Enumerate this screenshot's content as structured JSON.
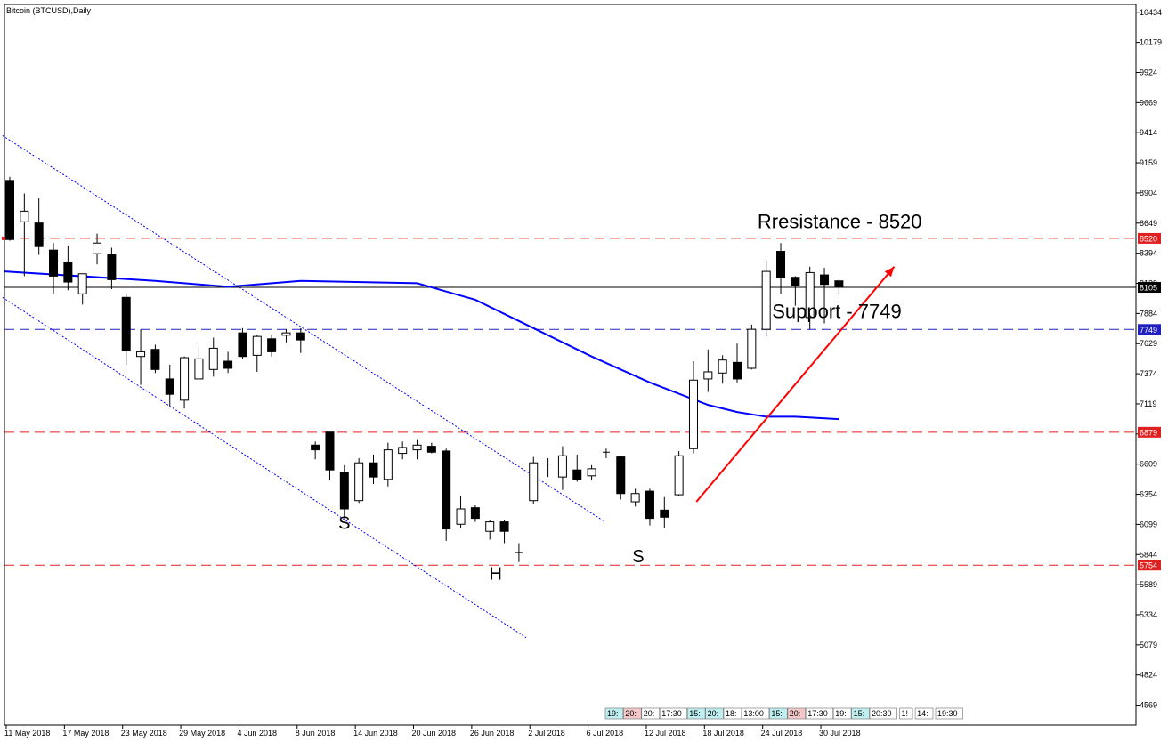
{
  "title": "Bitcoin (BTCUSD),Daily",
  "colors": {
    "bull_fill": "#ffffff",
    "bear_fill": "#000000",
    "candle_outline": "#000000",
    "ma_line": "#0000ff",
    "channel_line": "#0000ff",
    "red_level": "#e02020",
    "blue_level": "#2020c0",
    "arrow": "#ff0000",
    "current_price_line": "#000000"
  },
  "session_tabs": [
    "19:",
    "20:",
    "20:",
    "17:30",
    "15:",
    "20:",
    "18:",
    "13:00",
    "15:",
    "20:",
    "17:30",
    "19:",
    "15:",
    "20:30",
    "1!",
    "14:",
    "19:30"
  ],
  "chart_data": {
    "type": "candlestick",
    "title": "Bitcoin (BTCUSD),Daily",
    "ylim": [
      4400,
      10500
    ],
    "y_ticks": [
      10434,
      10179,
      9924,
      9669,
      9414,
      9159,
      8904,
      8649,
      8394,
      8139,
      7884,
      7629,
      7374,
      7119,
      6864,
      6609,
      6354,
      6099,
      5844,
      5589,
      5334,
      5079,
      4824,
      4569
    ],
    "x_tick_labels": [
      "11 May 2018",
      "17 May 2018",
      "23 May 2018",
      "29 May 2018",
      "4 Jun 2018",
      "8 Jun 2018",
      "14 Jun 2018",
      "20 Jun 2018",
      "26 Jun 2018",
      "2 Jul 2018",
      "6 Jul 2018",
      "12 Jul 2018",
      "18 Jul 2018",
      "24 Jul 2018",
      "30 Jul 2018"
    ],
    "candles": [
      {
        "o": 9010,
        "h": 9040,
        "l": 8500,
        "c": 8510
      },
      {
        "o": 8660,
        "h": 8900,
        "l": 8200,
        "c": 8750
      },
      {
        "o": 8650,
        "h": 8860,
        "l": 8380,
        "c": 8450
      },
      {
        "o": 8420,
        "h": 8480,
        "l": 8050,
        "c": 8200
      },
      {
        "o": 8320,
        "h": 8460,
        "l": 8080,
        "c": 8150
      },
      {
        "o": 8050,
        "h": 8220,
        "l": 7960,
        "c": 8220
      },
      {
        "o": 8390,
        "h": 8560,
        "l": 8300,
        "c": 8480
      },
      {
        "o": 8380,
        "h": 8440,
        "l": 8090,
        "c": 8170
      },
      {
        "o": 8020,
        "h": 8050,
        "l": 7450,
        "c": 7570
      },
      {
        "o": 7520,
        "h": 7750,
        "l": 7280,
        "c": 7560
      },
      {
        "o": 7580,
        "h": 7620,
        "l": 7380,
        "c": 7410
      },
      {
        "o": 7330,
        "h": 7450,
        "l": 7100,
        "c": 7200
      },
      {
        "o": 7150,
        "h": 7520,
        "l": 7080,
        "c": 7510
      },
      {
        "o": 7330,
        "h": 7600,
        "l": 7330,
        "c": 7500
      },
      {
        "o": 7410,
        "h": 7680,
        "l": 7350,
        "c": 7590
      },
      {
        "o": 7480,
        "h": 7560,
        "l": 7380,
        "c": 7420
      },
      {
        "o": 7720,
        "h": 7760,
        "l": 7500,
        "c": 7520
      },
      {
        "o": 7530,
        "h": 7700,
        "l": 7390,
        "c": 7690
      },
      {
        "o": 7670,
        "h": 7700,
        "l": 7520,
        "c": 7560
      },
      {
        "o": 7700,
        "h": 7750,
        "l": 7640,
        "c": 7720
      },
      {
        "o": 7720,
        "h": 7760,
        "l": 7550,
        "c": 7660
      },
      {
        "o": 6770,
        "h": 6800,
        "l": 6650,
        "c": 6730
      },
      {
        "o": 6880,
        "h": 6880,
        "l": 6470,
        "c": 6560
      },
      {
        "o": 6540,
        "h": 6600,
        "l": 6150,
        "c": 6230
      },
      {
        "o": 6300,
        "h": 6660,
        "l": 6280,
        "c": 6620
      },
      {
        "o": 6620,
        "h": 6690,
        "l": 6440,
        "c": 6500
      },
      {
        "o": 6480,
        "h": 6790,
        "l": 6420,
        "c": 6730
      },
      {
        "o": 6700,
        "h": 6800,
        "l": 6650,
        "c": 6750
      },
      {
        "o": 6730,
        "h": 6820,
        "l": 6650,
        "c": 6770
      },
      {
        "o": 6760,
        "h": 6790,
        "l": 6700,
        "c": 6710
      },
      {
        "o": 6720,
        "h": 6740,
        "l": 5960,
        "c": 6060
      },
      {
        "o": 6100,
        "h": 6340,
        "l": 6070,
        "c": 6230
      },
      {
        "o": 6240,
        "h": 6260,
        "l": 6120,
        "c": 6150
      },
      {
        "o": 6040,
        "h": 6140,
        "l": 5970,
        "c": 6120
      },
      {
        "o": 6120,
        "h": 6140,
        "l": 5940,
        "c": 6040
      },
      {
        "o": 5850,
        "h": 5940,
        "l": 5780,
        "c": 5860
      },
      {
        "o": 6300,
        "h": 6670,
        "l": 6270,
        "c": 6620
      },
      {
        "o": 6600,
        "h": 6660,
        "l": 6500,
        "c": 6610
      },
      {
        "o": 6500,
        "h": 6760,
        "l": 6390,
        "c": 6680
      },
      {
        "o": 6560,
        "h": 6690,
        "l": 6460,
        "c": 6480
      },
      {
        "o": 6510,
        "h": 6600,
        "l": 6470,
        "c": 6570
      },
      {
        "o": 6710,
        "h": 6740,
        "l": 6660,
        "c": 6710
      },
      {
        "o": 6670,
        "h": 6680,
        "l": 6310,
        "c": 6360
      },
      {
        "o": 6290,
        "h": 6400,
        "l": 6250,
        "c": 6360
      },
      {
        "o": 6380,
        "h": 6400,
        "l": 6090,
        "c": 6150
      },
      {
        "o": 6220,
        "h": 6330,
        "l": 6070,
        "c": 6160
      },
      {
        "o": 6350,
        "h": 6720,
        "l": 6340,
        "c": 6680
      },
      {
        "o": 6740,
        "h": 7480,
        "l": 6700,
        "c": 7320
      },
      {
        "o": 7330,
        "h": 7580,
        "l": 7220,
        "c": 7390
      },
      {
        "o": 7380,
        "h": 7530,
        "l": 7290,
        "c": 7490
      },
      {
        "o": 7470,
        "h": 7630,
        "l": 7300,
        "c": 7330
      },
      {
        "o": 7420,
        "h": 7790,
        "l": 7410,
        "c": 7750
      },
      {
        "o": 7750,
        "h": 8330,
        "l": 7690,
        "c": 8240
      },
      {
        "o": 8410,
        "h": 8480,
        "l": 8050,
        "c": 8190
      },
      {
        "o": 8190,
        "h": 8200,
        "l": 7950,
        "c": 8120
      },
      {
        "o": 7850,
        "h": 8280,
        "l": 7750,
        "c": 8230
      },
      {
        "o": 8210,
        "h": 8270,
        "l": 7800,
        "c": 8130
      },
      {
        "o": 8160,
        "h": 8170,
        "l": 8050,
        "c": 8110
      }
    ],
    "moving_average": [
      [
        0,
        8240
      ],
      [
        10,
        8160
      ],
      [
        15,
        8110
      ],
      [
        20,
        8160
      ],
      [
        28,
        8140
      ],
      [
        32,
        8000
      ],
      [
        36,
        7760
      ],
      [
        40,
        7520
      ],
      [
        44,
        7300
      ],
      [
        48,
        7110
      ],
      [
        50,
        7050
      ],
      [
        52,
        7010
      ],
      [
        54,
        7010
      ],
      [
        57,
        6990
      ]
    ],
    "channel_lines": [
      {
        "from": [
          -0.5,
          9390
        ],
        "to": [
          40.8,
          6130
        ]
      },
      {
        "from": [
          -0.5,
          8020
        ],
        "to": [
          35.5,
          5140
        ]
      }
    ],
    "horizontal_levels": [
      {
        "price": 8520,
        "tag": "8520",
        "style": "red"
      },
      {
        "price": 7749,
        "tag": "7749",
        "style": "blue"
      },
      {
        "price": 6879,
        "tag": "6879",
        "style": "red"
      },
      {
        "price": 5754,
        "tag": "5754",
        "style": "red"
      }
    ],
    "current_price": {
      "price": 8105,
      "tag": "8105"
    },
    "annotations": [
      {
        "text": "Rresistance - 8520",
        "x": 51.4,
        "y": 8605
      },
      {
        "text": "Support - 7749",
        "x": 52.4,
        "y": 7845
      }
    ],
    "pattern_labels": [
      {
        "text": "S",
        "x": 23,
        "y": 6060
      },
      {
        "text": "H",
        "x": 33.4,
        "y": 5630
      },
      {
        "text": "S",
        "x": 43.2,
        "y": 5780
      }
    ],
    "arrow": {
      "from": [
        47.2,
        6290
      ],
      "to": [
        60.8,
        8280
      ]
    }
  }
}
